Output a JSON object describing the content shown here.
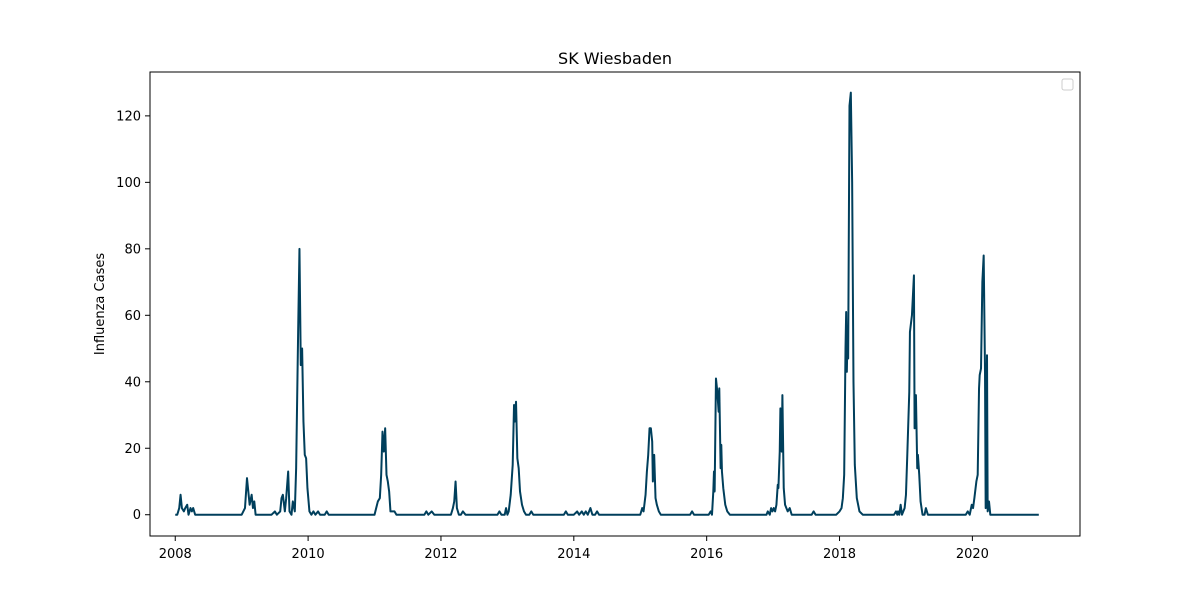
{
  "chart_data": {
    "type": "line",
    "title": "SK Wiesbaden",
    "xlabel": "",
    "ylabel": "Influenza Cases",
    "xlim": [
      2007.62,
      2021.62
    ],
    "ylim": [
      -6.4,
      133.2
    ],
    "x_ticks": [
      "2008",
      "2010",
      "2012",
      "2014",
      "2016",
      "2018",
      "2020"
    ],
    "y_ticks": [
      "0",
      "20",
      "40",
      "60",
      "80",
      "100",
      "120"
    ],
    "grid": false,
    "legend": {
      "placement": "top-right",
      "entries": []
    },
    "series": [
      {
        "color": "#003f5c",
        "points": [
          [
            2008.0,
            0
          ],
          [
            2008.03,
            0
          ],
          [
            2008.06,
            2
          ],
          [
            2008.08,
            6
          ],
          [
            2008.1,
            2
          ],
          [
            2008.13,
            1
          ],
          [
            2008.15,
            2
          ],
          [
            2008.18,
            3
          ],
          [
            2008.2,
            0
          ],
          [
            2008.23,
            2
          ],
          [
            2008.25,
            1
          ],
          [
            2008.27,
            2
          ],
          [
            2008.3,
            0
          ],
          [
            2008.5,
            0
          ],
          [
            2009.0,
            0
          ],
          [
            2009.05,
            2
          ],
          [
            2009.08,
            11
          ],
          [
            2009.1,
            7
          ],
          [
            2009.12,
            3
          ],
          [
            2009.15,
            6
          ],
          [
            2009.17,
            2
          ],
          [
            2009.19,
            4
          ],
          [
            2009.21,
            0
          ],
          [
            2009.35,
            0
          ],
          [
            2009.45,
            0
          ],
          [
            2009.5,
            1
          ],
          [
            2009.53,
            0
          ],
          [
            2009.58,
            1
          ],
          [
            2009.6,
            5
          ],
          [
            2009.62,
            6
          ],
          [
            2009.65,
            1
          ],
          [
            2009.67,
            5
          ],
          [
            2009.7,
            13
          ],
          [
            2009.72,
            1
          ],
          [
            2009.75,
            0
          ],
          [
            2009.77,
            4
          ],
          [
            2009.8,
            1
          ],
          [
            2009.82,
            14
          ],
          [
            2009.85,
            55
          ],
          [
            2009.87,
            80
          ],
          [
            2009.89,
            45
          ],
          [
            2009.91,
            50
          ],
          [
            2009.93,
            28
          ],
          [
            2009.95,
            18
          ],
          [
            2009.97,
            17
          ],
          [
            2009.99,
            8
          ],
          [
            2010.02,
            1
          ],
          [
            2010.05,
            0
          ],
          [
            2010.08,
            1
          ],
          [
            2010.11,
            0
          ],
          [
            2010.15,
            1
          ],
          [
            2010.18,
            0
          ],
          [
            2010.25,
            0
          ],
          [
            2010.28,
            1
          ],
          [
            2010.31,
            0
          ],
          [
            2010.5,
            0
          ],
          [
            2011.0,
            0
          ],
          [
            2011.05,
            4
          ],
          [
            2011.08,
            5
          ],
          [
            2011.1,
            12
          ],
          [
            2011.12,
            25
          ],
          [
            2011.14,
            19
          ],
          [
            2011.16,
            26
          ],
          [
            2011.18,
            12
          ],
          [
            2011.2,
            10
          ],
          [
            2011.22,
            7
          ],
          [
            2011.24,
            1
          ],
          [
            2011.3,
            1
          ],
          [
            2011.33,
            0
          ],
          [
            2011.5,
            0
          ],
          [
            2011.75,
            0
          ],
          [
            2011.78,
            1
          ],
          [
            2011.81,
            0
          ],
          [
            2011.86,
            1
          ],
          [
            2011.9,
            0
          ],
          [
            2012.1,
            0
          ],
          [
            2012.15,
            0
          ],
          [
            2012.18,
            2
          ],
          [
            2012.2,
            4
          ],
          [
            2012.22,
            10
          ],
          [
            2012.24,
            2
          ],
          [
            2012.27,
            0
          ],
          [
            2012.3,
            0
          ],
          [
            2012.33,
            1
          ],
          [
            2012.37,
            0
          ],
          [
            2012.5,
            0
          ],
          [
            2012.85,
            0
          ],
          [
            2012.88,
            1
          ],
          [
            2012.91,
            0
          ],
          [
            2012.96,
            0
          ],
          [
            2012.98,
            2
          ],
          [
            2013.0,
            0
          ],
          [
            2013.02,
            1
          ],
          [
            2013.05,
            6
          ],
          [
            2013.08,
            15
          ],
          [
            2013.1,
            33
          ],
          [
            2013.11,
            28
          ],
          [
            2013.13,
            34
          ],
          [
            2013.15,
            17
          ],
          [
            2013.17,
            14
          ],
          [
            2013.19,
            7
          ],
          [
            2013.22,
            3
          ],
          [
            2013.25,
            1
          ],
          [
            2013.28,
            0
          ],
          [
            2013.33,
            0
          ],
          [
            2013.36,
            1
          ],
          [
            2013.39,
            0
          ],
          [
            2013.5,
            0
          ],
          [
            2013.85,
            0
          ],
          [
            2013.88,
            1
          ],
          [
            2013.91,
            0
          ],
          [
            2014.0,
            0
          ],
          [
            2014.05,
            1
          ],
          [
            2014.08,
            0
          ],
          [
            2014.12,
            1
          ],
          [
            2014.15,
            0
          ],
          [
            2014.18,
            1
          ],
          [
            2014.21,
            0
          ],
          [
            2014.25,
            2
          ],
          [
            2014.28,
            0
          ],
          [
            2014.32,
            0
          ],
          [
            2014.35,
            1
          ],
          [
            2014.38,
            0
          ],
          [
            2014.8,
            0
          ],
          [
            2015.0,
            0
          ],
          [
            2015.03,
            2
          ],
          [
            2015.05,
            1
          ],
          [
            2015.08,
            6
          ],
          [
            2015.1,
            13
          ],
          [
            2015.12,
            18
          ],
          [
            2015.14,
            26
          ],
          [
            2015.16,
            26
          ],
          [
            2015.18,
            22
          ],
          [
            2015.19,
            10
          ],
          [
            2015.21,
            18
          ],
          [
            2015.23,
            5
          ],
          [
            2015.25,
            3
          ],
          [
            2015.28,
            1
          ],
          [
            2015.31,
            0
          ],
          [
            2015.5,
            0
          ],
          [
            2015.75,
            0
          ],
          [
            2015.78,
            1
          ],
          [
            2015.81,
            0
          ],
          [
            2015.95,
            0
          ],
          [
            2016.03,
            0
          ],
          [
            2016.06,
            1
          ],
          [
            2016.08,
            0
          ],
          [
            2016.1,
            7
          ],
          [
            2016.11,
            13
          ],
          [
            2016.12,
            7
          ],
          [
            2016.14,
            41
          ],
          [
            2016.16,
            37
          ],
          [
            2016.18,
            31
          ],
          [
            2016.19,
            38
          ],
          [
            2016.21,
            14
          ],
          [
            2016.22,
            21
          ],
          [
            2016.23,
            13
          ],
          [
            2016.25,
            8
          ],
          [
            2016.28,
            3
          ],
          [
            2016.31,
            1
          ],
          [
            2016.35,
            0
          ],
          [
            2016.5,
            0
          ],
          [
            2016.9,
            0
          ],
          [
            2016.92,
            1
          ],
          [
            2016.95,
            0
          ],
          [
            2016.97,
            2
          ],
          [
            2016.99,
            1
          ],
          [
            2017.01,
            2
          ],
          [
            2017.03,
            1
          ],
          [
            2017.05,
            3
          ],
          [
            2017.07,
            9
          ],
          [
            2017.08,
            8
          ],
          [
            2017.1,
            19
          ],
          [
            2017.11,
            32
          ],
          [
            2017.13,
            19
          ],
          [
            2017.14,
            36
          ],
          [
            2017.16,
            8
          ],
          [
            2017.18,
            3
          ],
          [
            2017.2,
            2
          ],
          [
            2017.22,
            1
          ],
          [
            2017.25,
            2
          ],
          [
            2017.28,
            0
          ],
          [
            2017.5,
            0
          ],
          [
            2017.58,
            0
          ],
          [
            2017.61,
            1
          ],
          [
            2017.64,
            0
          ],
          [
            2017.8,
            0
          ],
          [
            2017.95,
            0
          ],
          [
            2018.0,
            1
          ],
          [
            2018.03,
            2
          ],
          [
            2018.05,
            5
          ],
          [
            2018.07,
            12
          ],
          [
            2018.09,
            50
          ],
          [
            2018.1,
            61
          ],
          [
            2018.11,
            43
          ],
          [
            2018.12,
            54
          ],
          [
            2018.13,
            47
          ],
          [
            2018.15,
            123
          ],
          [
            2018.17,
            127
          ],
          [
            2018.19,
            100
          ],
          [
            2018.21,
            40
          ],
          [
            2018.23,
            15
          ],
          [
            2018.26,
            5
          ],
          [
            2018.3,
            1
          ],
          [
            2018.35,
            0
          ],
          [
            2018.5,
            0
          ],
          [
            2018.82,
            0
          ],
          [
            2018.85,
            1
          ],
          [
            2018.87,
            0
          ],
          [
            2018.88,
            1
          ],
          [
            2018.9,
            0
          ],
          [
            2018.92,
            3
          ],
          [
            2018.94,
            0
          ],
          [
            2018.96,
            1
          ],
          [
            2018.98,
            2
          ],
          [
            2019.0,
            6
          ],
          [
            2019.02,
            18
          ],
          [
            2019.05,
            37
          ],
          [
            2019.06,
            55
          ],
          [
            2019.09,
            60
          ],
          [
            2019.12,
            72
          ],
          [
            2019.13,
            26
          ],
          [
            2019.15,
            36
          ],
          [
            2019.17,
            14
          ],
          [
            2019.18,
            18
          ],
          [
            2019.2,
            12
          ],
          [
            2019.22,
            4
          ],
          [
            2019.25,
            0
          ],
          [
            2019.28,
            0
          ],
          [
            2019.3,
            2
          ],
          [
            2019.33,
            0
          ],
          [
            2019.5,
            0
          ],
          [
            2019.8,
            0
          ],
          [
            2019.9,
            0
          ],
          [
            2019.93,
            1
          ],
          [
            2019.96,
            0
          ],
          [
            2019.99,
            3
          ],
          [
            2020.01,
            2
          ],
          [
            2020.03,
            5
          ],
          [
            2020.06,
            10
          ],
          [
            2020.08,
            12
          ],
          [
            2020.1,
            38
          ],
          [
            2020.11,
            42
          ],
          [
            2020.13,
            44
          ],
          [
            2020.15,
            70
          ],
          [
            2020.17,
            78
          ],
          [
            2020.19,
            43
          ],
          [
            2020.2,
            2
          ],
          [
            2020.22,
            48
          ],
          [
            2020.23,
            1
          ],
          [
            2020.25,
            4
          ],
          [
            2020.27,
            0
          ],
          [
            2020.5,
            0
          ],
          [
            2021.0,
            0
          ]
        ]
      }
    ]
  }
}
